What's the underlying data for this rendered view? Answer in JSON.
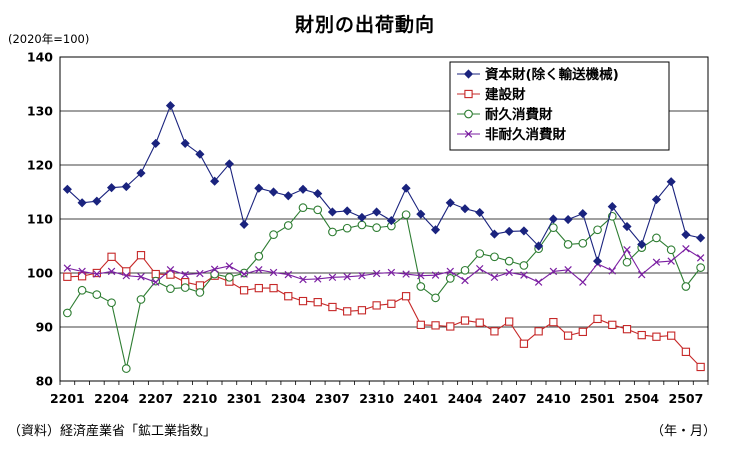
{
  "chart_data": {
    "type": "line",
    "title": "財別の出荷動向",
    "base_note": "(2020年=100)",
    "source": "（資料）経済産業省「鉱工業指数」",
    "x_unit_label": "（年・月）",
    "ylim": [
      80,
      140
    ],
    "yticks": [
      80,
      90,
      100,
      110,
      120,
      130,
      140
    ],
    "grid": true,
    "legend_position": "top-right",
    "x": [
      "2201",
      "2202",
      "2203",
      "2204",
      "2205",
      "2206",
      "2207",
      "2208",
      "2209",
      "2210",
      "2211",
      "2212",
      "2301",
      "2302",
      "2303",
      "2304",
      "2305",
      "2306",
      "2307",
      "2308",
      "2309",
      "2310",
      "2311",
      "2312",
      "2401",
      "2402",
      "2403",
      "2404",
      "2405",
      "2406",
      "2407",
      "2408",
      "2409",
      "2410",
      "2411",
      "2412",
      "2501",
      "2502",
      "2503",
      "2504",
      "2505",
      "2506",
      "2507",
      "2508"
    ],
    "x_tick_labels": [
      "2201",
      "2204",
      "2207",
      "2210",
      "2301",
      "2304",
      "2307",
      "2310",
      "2401",
      "2404",
      "2407",
      "2410",
      "2501",
      "2504",
      "2507"
    ],
    "series": [
      {
        "name": "資本財(除く輸送機械)",
        "color": "#1a237e",
        "marker": "diamond",
        "values": [
          115.5,
          113.0,
          113.3,
          115.8,
          116.0,
          118.5,
          124.0,
          131.0,
          124.0,
          122.0,
          117.0,
          120.2,
          109.0,
          115.7,
          115.0,
          114.3,
          115.5,
          114.7,
          111.3,
          111.5,
          110.3,
          111.3,
          109.7,
          115.7,
          110.9,
          108.0,
          113.0,
          111.9,
          111.2,
          107.2,
          107.7,
          107.8,
          105.0,
          110.0,
          109.9,
          111.0,
          102.2,
          112.3,
          108.6,
          105.3,
          113.6,
          116.9,
          107.1,
          106.5
        ]
      },
      {
        "name": "建設財",
        "color": "#c62828",
        "marker": "square",
        "values": [
          99.3,
          99.4,
          100.0,
          103.0,
          100.3,
          103.3,
          99.8,
          99.7,
          98.3,
          97.7,
          99.5,
          98.4,
          96.8,
          97.2,
          97.2,
          95.7,
          94.8,
          94.6,
          93.7,
          92.9,
          93.1,
          94.0,
          94.3,
          95.7,
          90.4,
          90.3,
          90.1,
          91.2,
          90.8,
          89.2,
          91.0,
          86.9,
          89.2,
          90.9,
          88.4,
          89.1,
          91.5,
          90.4,
          89.6,
          88.5,
          88.2,
          88.4,
          85.4,
          82.6
        ]
      },
      {
        "name": "耐久消費財",
        "color": "#2e7d32",
        "marker": "circle",
        "values": [
          92.6,
          96.8,
          96.0,
          94.5,
          82.3,
          95.1,
          98.5,
          97.1,
          97.3,
          96.4,
          99.8,
          99.2,
          100.0,
          103.1,
          107.1,
          108.8,
          112.1,
          111.7,
          107.6,
          108.3,
          108.9,
          108.4,
          108.7,
          110.8,
          97.5,
          95.4,
          99.0,
          100.5,
          103.6,
          103.0,
          102.2,
          101.4,
          104.5,
          108.4,
          105.3,
          105.5,
          108.0,
          110.5,
          102.0,
          104.7,
          106.5,
          104.3,
          97.5,
          101.0
        ]
      },
      {
        "name": "非耐久消費財",
        "color": "#7b1fa2",
        "marker": "x",
        "values": [
          100.9,
          100.3,
          99.8,
          100.3,
          99.5,
          99.3,
          98.3,
          100.6,
          99.7,
          99.9,
          100.7,
          101.3,
          99.8,
          100.6,
          100.1,
          99.7,
          98.8,
          98.9,
          99.2,
          99.3,
          99.5,
          99.9,
          100.1,
          99.8,
          99.5,
          99.6,
          100.3,
          98.6,
          100.8,
          99.2,
          100.1,
          99.6,
          98.3,
          100.3,
          100.6,
          98.3,
          101.7,
          100.4,
          104.3,
          99.7,
          102.0,
          102.2,
          104.5,
          102.8
        ]
      }
    ]
  }
}
